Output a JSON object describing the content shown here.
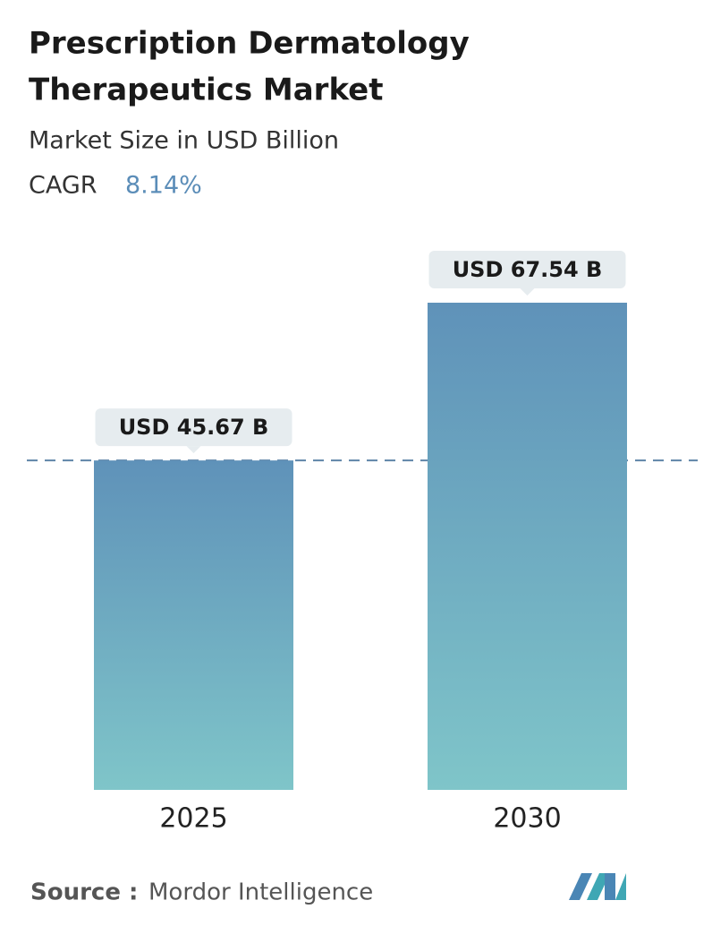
{
  "chart_data": {
    "type": "bar",
    "title": [
      "Prescription Dermatology",
      "Therapeutics Market"
    ],
    "subtitle": "Market Size in USD Billion",
    "cagr_label": "CAGR",
    "cagr_value": "8.14%",
    "categories": [
      "2025",
      "2030"
    ],
    "values": [
      45.67,
      67.54
    ],
    "value_labels": [
      "USD 45.67 B",
      "USD 67.54 B"
    ],
    "color_top": "#5f92b9",
    "color_bottom": "#7fc5c9",
    "source_label": "Source :",
    "source": "Mordor Intelligence"
  }
}
